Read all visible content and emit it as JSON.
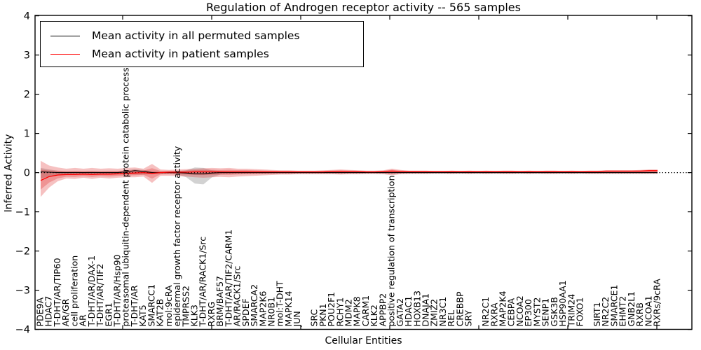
{
  "figure": {
    "title": "Regulation of Androgen receptor activity -- 565 samples",
    "xlabel": "Cellular Entities",
    "ylabel": "Inferred Activity"
  },
  "legend": {
    "position": "upper left",
    "entries": [
      {
        "label": "Mean activity in all permuted samples",
        "color": "#000000"
      },
      {
        "label": "Mean activity in patient samples",
        "color": "#ff0000"
      }
    ]
  },
  "chart_data": {
    "type": "line",
    "title": "Regulation of Androgen receptor activity -- 565 samples",
    "xlabel": "Cellular Entities",
    "ylabel": "Inferred Activity",
    "ylim": [
      -4,
      4
    ],
    "yticks": [
      -4,
      -3,
      -2,
      -1,
      0,
      1,
      2,
      3,
      4
    ],
    "grid": false,
    "legend_position": "upper left",
    "zero_line": {
      "style": "dotted",
      "color": "#000000",
      "y": 0
    },
    "colors": {
      "permuted_line": "#000000",
      "patient_line": "#ff0000",
      "patient_band": "#dd2222",
      "permuted_band": "#888888"
    },
    "categories": [
      "PDE9A",
      "HDAC7",
      "T-DHT/AR/TIP60",
      "AR/GR",
      "cell proliferation",
      "AR",
      "T-DHT/AR/DAX-1",
      "T-DHT/AR/TIF2",
      "EGR1",
      "T-DHT/AR/Hsp90",
      "proteasomal ubiquitin-dependent protein catabolic process",
      "T-DHT/AR",
      "KAT5",
      "SMARCC1",
      "KAT2B",
      "mol:9cRA",
      "epidermal growth factor receptor activity",
      "TMPRSS2",
      "KLK3",
      "T-DHT/AR/RACK1/Src",
      "RXRG",
      "BRM/BAF57",
      "T-DHT/AR/TIF2/CARM1",
      "AR/RACK1/Src",
      "SPDEF",
      "SMARCA2",
      "MAP2K6",
      "NR0B1",
      "mol:T-DHT",
      "MAPK14",
      "JUN",
      "",
      "SRC",
      "PKN1",
      "POU2F1",
      "RCHY1",
      "MDM2",
      "MAPK8",
      "CARM1",
      "KLK2",
      "APPBP2",
      "positive regulation of transcription",
      "GATA2",
      "HDAC1",
      "HOXB13",
      "DNAJA1",
      "ZMIZ2",
      "NR3C1",
      "REL",
      "CREBBP",
      "SRY",
      "",
      "NR2C1",
      "RXRA",
      "MAP2K4",
      "CEBPA",
      "NCOA2",
      "EP300",
      "MYST2",
      "SENP1",
      "GSK3B",
      "HSP90AA1",
      "TRIM24",
      "FOXO1",
      "",
      "SIRT1",
      "NR2C2",
      "SMARCE1",
      "EHMT2",
      "GNB2L1",
      "RXRB",
      "NCOA1",
      "RXRs/9cRA"
    ],
    "series": [
      {
        "name": "Mean activity in all permuted samples",
        "color": "#000000",
        "values": [
          0.02,
          0.01,
          0,
          0,
          0,
          0,
          0,
          0,
          0,
          0,
          0.02,
          0.05,
          0.03,
          0,
          0,
          0,
          0,
          -0.01,
          -0.03,
          -0.03,
          -0.01,
          0,
          0,
          0,
          0,
          0,
          0,
          0,
          0,
          0,
          0,
          0,
          0,
          0,
          0,
          0,
          0,
          0,
          0,
          0,
          0,
          0,
          0,
          0,
          0,
          0,
          0,
          0,
          0,
          0,
          0,
          0,
          0,
          0,
          0,
          0,
          0,
          0,
          0,
          0,
          0,
          0,
          0,
          0,
          0,
          0,
          0,
          0,
          0,
          0,
          0,
          0,
          0
        ]
      },
      {
        "name": "Mean activity in patient samples",
        "color": "#ff0000",
        "values": [
          -0.2,
          -0.1,
          -0.06,
          -0.05,
          -0.05,
          -0.04,
          -0.05,
          -0.04,
          -0.04,
          -0.03,
          -0.02,
          -0.01,
          0,
          -0.02,
          0,
          0.01,
          0.01,
          0.01,
          0.02,
          0.02,
          0.02,
          0.02,
          0.02,
          0.02,
          0.02,
          0.02,
          0.02,
          0.02,
          0.02,
          0.02,
          0.02,
          0.02,
          0.02,
          0.02,
          0.03,
          0.03,
          0.03,
          0.03,
          0.02,
          0.02,
          0.03,
          0.04,
          0.03,
          0.03,
          0.03,
          0.03,
          0.03,
          0.03,
          0.03,
          0.03,
          0.03,
          0.03,
          0.03,
          0.03,
          0.03,
          0.03,
          0.03,
          0.03,
          0.03,
          0.03,
          0.03,
          0.03,
          0.03,
          0.03,
          0.03,
          0.03,
          0.04,
          0.04,
          0.04,
          0.04,
          0.04,
          0.05,
          0.05
        ]
      }
    ],
    "bands": [
      {
        "name": "permuted samples spread",
        "color": "#888888",
        "opacity": 0.38,
        "upper": [
          0.12,
          0.08,
          0.05,
          0.04,
          0.04,
          0.03,
          0.04,
          0.03,
          0.03,
          0.03,
          0.06,
          0.09,
          0.07,
          0.04,
          0.03,
          0.03,
          0.04,
          0.06,
          0.13,
          0.12,
          0.06,
          0.04,
          0.03,
          0.03,
          0.03,
          0.03,
          0.03,
          0.03,
          0.03,
          0.03,
          0.03,
          0.03,
          0.03,
          0.03,
          0.03,
          0.03,
          0.03,
          0.03,
          0.03,
          0.03,
          0.03,
          0.04,
          0.03,
          0.03,
          0.03,
          0.03,
          0.03,
          0.03,
          0.03,
          0.03,
          0.03,
          0.03,
          0.03,
          0.03,
          0.03,
          0.03,
          0.03,
          0.03,
          0.03,
          0.03,
          0.03,
          0.03,
          0.03,
          0.03,
          0.03,
          0.03,
          0.03,
          0.03,
          0.03,
          0.03,
          0.03,
          0.03,
          0.03
        ],
        "lower": [
          -0.15,
          -0.1,
          -0.06,
          -0.05,
          -0.04,
          -0.04,
          -0.04,
          -0.04,
          -0.04,
          -0.03,
          -0.04,
          -0.05,
          -0.05,
          -0.04,
          -0.03,
          -0.03,
          -0.05,
          -0.12,
          -0.28,
          -0.3,
          -0.12,
          -0.05,
          -0.04,
          -0.03,
          -0.03,
          -0.03,
          -0.03,
          -0.03,
          -0.03,
          -0.03,
          -0.03,
          -0.03,
          -0.03,
          -0.03,
          -0.03,
          -0.03,
          -0.03,
          -0.03,
          -0.03,
          -0.03,
          -0.03,
          -0.04,
          -0.03,
          -0.03,
          -0.03,
          -0.03,
          -0.03,
          -0.03,
          -0.03,
          -0.03,
          -0.03,
          -0.03,
          -0.03,
          -0.03,
          -0.03,
          -0.03,
          -0.03,
          -0.03,
          -0.03,
          -0.03,
          -0.03,
          -0.03,
          -0.03,
          -0.03,
          -0.03,
          -0.03,
          -0.03,
          -0.03,
          -0.03,
          -0.03,
          -0.03,
          -0.03,
          -0.03
        ]
      },
      {
        "name": "patient samples spread",
        "color": "#dd2222",
        "opacity": 0.28,
        "upper": [
          0.3,
          0.18,
          0.13,
          0.1,
          0.12,
          0.1,
          0.12,
          0.1,
          0.11,
          0.1,
          0.12,
          0.13,
          0.1,
          0.22,
          0.08,
          0.07,
          0.08,
          0.09,
          0.1,
          0.11,
          0.12,
          0.11,
          0.12,
          0.1,
          0.1,
          0.09,
          0.08,
          0.07,
          0.06,
          0.06,
          0.05,
          0.05,
          0.05,
          0.06,
          0.07,
          0.08,
          0.07,
          0.06,
          0.05,
          0.05,
          0.06,
          0.1,
          0.07,
          0.05,
          0.05,
          0.05,
          0.04,
          0.04,
          0.05,
          0.04,
          0.05,
          0.04,
          0.05,
          0.04,
          0.05,
          0.05,
          0.04,
          0.05,
          0.04,
          0.05,
          0.05,
          0.04,
          0.05,
          0.04,
          0.05,
          0.05,
          0.06,
          0.06,
          0.06,
          0.06,
          0.07,
          0.08,
          0.08
        ],
        "lower": [
          -0.62,
          -0.38,
          -0.22,
          -0.15,
          -0.16,
          -0.13,
          -0.16,
          -0.13,
          -0.15,
          -0.13,
          -0.12,
          -0.12,
          -0.1,
          -0.26,
          -0.08,
          -0.08,
          -0.09,
          -0.1,
          -0.12,
          -0.13,
          -0.12,
          -0.11,
          -0.12,
          -0.1,
          -0.09,
          -0.08,
          -0.07,
          -0.06,
          -0.05,
          -0.05,
          -0.04,
          -0.04,
          -0.04,
          -0.04,
          -0.04,
          -0.05,
          -0.04,
          -0.04,
          -0.03,
          -0.03,
          -0.04,
          -0.07,
          -0.04,
          -0.03,
          -0.03,
          -0.03,
          -0.02,
          -0.02,
          -0.03,
          -0.02,
          -0.03,
          -0.02,
          -0.03,
          -0.02,
          -0.03,
          -0.03,
          -0.02,
          -0.03,
          -0.02,
          -0.03,
          -0.03,
          -0.02,
          -0.03,
          -0.02,
          -0.03,
          -0.03,
          -0.03,
          -0.03,
          -0.03,
          -0.03,
          -0.03,
          -0.03,
          -0.03
        ]
      }
    ]
  }
}
